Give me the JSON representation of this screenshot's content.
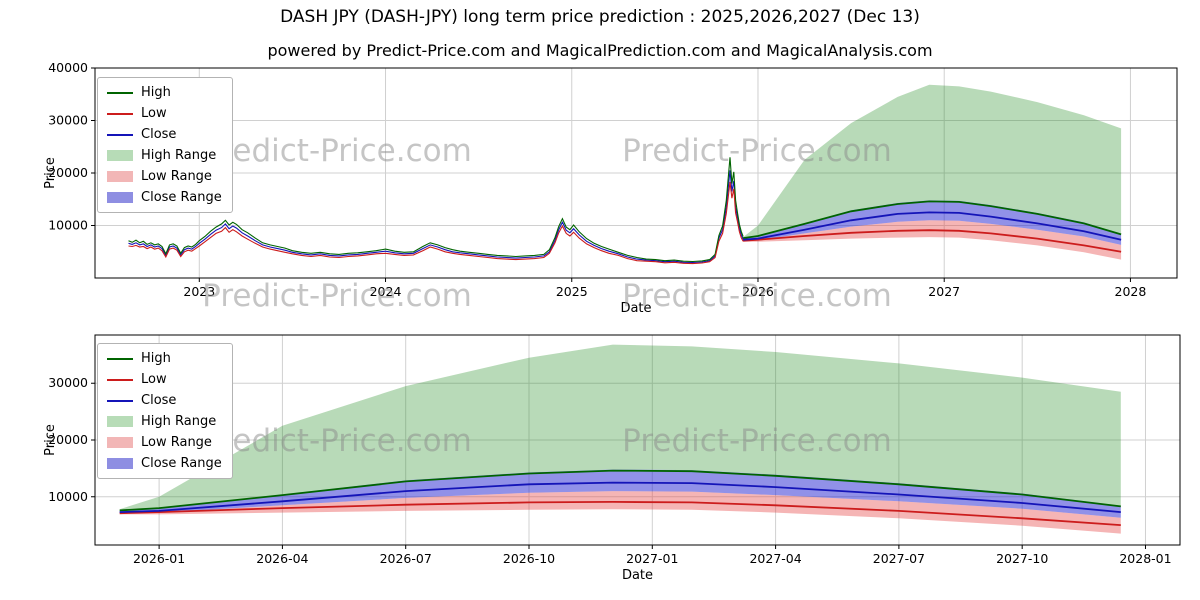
{
  "title": "DASH JPY (DASH-JPY) long term price prediction : 2025,2026,2027 (Dec 13)",
  "subtitle": "powered by Predict-Price.com and MagicalPrediction.com and MagicalAnalysis.com",
  "watermark": "Predict-Price.com",
  "colors": {
    "high": "#006400",
    "low": "#cc1c1c",
    "close": "#1414b8",
    "high_range_fill": "rgba(34,139,34,0.32)",
    "low_range_fill": "rgba(230,60,60,0.38)",
    "close_range_fill": "rgba(45,45,210,0.52)",
    "grid": "#d0d0d0",
    "spine": "#000000",
    "watermark_color": "#8c8c8c"
  },
  "legend": {
    "items": [
      {
        "label": "High",
        "type": "line",
        "color": "#006400"
      },
      {
        "label": "Low",
        "type": "line",
        "color": "#cc1c1c"
      },
      {
        "label": "Close",
        "type": "line",
        "color": "#1414b8"
      },
      {
        "label": "High Range",
        "type": "patch",
        "color": "#b7dcb7"
      },
      {
        "label": "Low Range",
        "type": "patch",
        "color": "#f2b6b6"
      },
      {
        "label": "Close Range",
        "type": "patch",
        "color": "#8e8ee2"
      }
    ]
  },
  "chart_data": [
    {
      "type": "line",
      "name": "history-and-forecast-chart",
      "xlabel": "Date",
      "ylabel": "Price",
      "xlim": [
        2022.44,
        2028.25
      ],
      "ylim": [
        0,
        40000
      ],
      "x_tick_values": [
        2023,
        2024,
        2025,
        2026,
        2027,
        2028
      ],
      "x_tick_labels": [
        "2023",
        "2024",
        "2025",
        "2026",
        "2027",
        "2028"
      ],
      "y_tick_values": [
        10000,
        20000,
        30000,
        40000
      ],
      "y_tick_labels": [
        "10000",
        "20000",
        "30000",
        "40000"
      ],
      "legend": [
        "High",
        "Low",
        "Close",
        "High Range",
        "Low Range",
        "Close Range"
      ],
      "historical_ohlc": [
        [
          2022.62,
          7100,
          6100,
          6600
        ],
        [
          2022.64,
          6800,
          6000,
          6400
        ],
        [
          2022.66,
          7200,
          6200,
          6700
        ],
        [
          2022.68,
          6700,
          5900,
          6300
        ],
        [
          2022.7,
          7000,
          6000,
          6500
        ],
        [
          2022.72,
          6400,
          5600,
          6000
        ],
        [
          2022.74,
          6700,
          5900,
          6300
        ],
        [
          2022.76,
          6300,
          5500,
          5900
        ],
        [
          2022.78,
          6500,
          5700,
          6100
        ],
        [
          2022.8,
          6000,
          5200,
          5600
        ],
        [
          2022.82,
          4600,
          4000,
          4300
        ],
        [
          2022.84,
          6300,
          5500,
          5900
        ],
        [
          2022.86,
          6500,
          5700,
          6100
        ],
        [
          2022.88,
          6100,
          5300,
          5700
        ],
        [
          2022.9,
          4700,
          4100,
          4400
        ],
        [
          2022.92,
          5800,
          5000,
          5400
        ],
        [
          2022.94,
          6100,
          5300,
          5700
        ],
        [
          2022.96,
          5900,
          5100,
          5500
        ],
        [
          2022.98,
          6400,
          5600,
          6000
        ],
        [
          2023.0,
          7100,
          6100,
          6600
        ],
        [
          2023.03,
          7900,
          6900,
          7400
        ],
        [
          2023.06,
          8900,
          7700,
          8300
        ],
        [
          2023.09,
          9700,
          8500,
          9100
        ],
        [
          2023.12,
          10300,
          8900,
          9600
        ],
        [
          2023.14,
          11000,
          9600,
          10300
        ],
        [
          2023.16,
          10100,
          8700,
          9400
        ],
        [
          2023.18,
          10600,
          9200,
          9900
        ],
        [
          2023.2,
          10200,
          8800,
          9500
        ],
        [
          2023.23,
          9200,
          8000,
          8600
        ],
        [
          2023.26,
          8600,
          7400,
          8000
        ],
        [
          2023.3,
          7600,
          6600,
          7100
        ],
        [
          2023.34,
          6700,
          5900,
          6300
        ],
        [
          2023.38,
          6300,
          5500,
          5900
        ],
        [
          2023.42,
          6000,
          5200,
          5600
        ],
        [
          2023.46,
          5700,
          4900,
          5300
        ],
        [
          2023.5,
          5200,
          4600,
          4900
        ],
        [
          2023.55,
          4900,
          4300,
          4600
        ],
        [
          2023.6,
          4700,
          4100,
          4400
        ],
        [
          2023.65,
          4900,
          4300,
          4600
        ],
        [
          2023.7,
          4600,
          4000,
          4300
        ],
        [
          2023.75,
          4500,
          3900,
          4200
        ],
        [
          2023.8,
          4700,
          4100,
          4400
        ],
        [
          2023.85,
          4800,
          4200,
          4500
        ],
        [
          2023.9,
          5000,
          4400,
          4700
        ],
        [
          2023.95,
          5200,
          4600,
          4900
        ],
        [
          2024.0,
          5500,
          4700,
          5100
        ],
        [
          2024.05,
          5100,
          4500,
          4800
        ],
        [
          2024.1,
          4900,
          4300,
          4600
        ],
        [
          2024.15,
          5000,
          4400,
          4700
        ],
        [
          2024.2,
          6000,
          5200,
          5600
        ],
        [
          2024.24,
          6700,
          5900,
          6300
        ],
        [
          2024.28,
          6300,
          5500,
          5900
        ],
        [
          2024.32,
          5800,
          5000,
          5400
        ],
        [
          2024.36,
          5400,
          4700,
          5000
        ],
        [
          2024.4,
          5100,
          4500,
          4800
        ],
        [
          2024.45,
          4900,
          4300,
          4600
        ],
        [
          2024.5,
          4700,
          4100,
          4400
        ],
        [
          2024.55,
          4500,
          3900,
          4200
        ],
        [
          2024.6,
          4300,
          3700,
          4000
        ],
        [
          2024.65,
          4200,
          3600,
          3900
        ],
        [
          2024.7,
          4100,
          3500,
          3800
        ],
        [
          2024.75,
          4200,
          3600,
          3900
        ],
        [
          2024.8,
          4300,
          3700,
          4000
        ],
        [
          2024.85,
          4500,
          3900,
          4200
        ],
        [
          2024.88,
          5400,
          4700,
          5000
        ],
        [
          2024.91,
          7700,
          6700,
          7200
        ],
        [
          2024.93,
          9800,
          8600,
          9200
        ],
        [
          2024.95,
          11300,
          9900,
          10600
        ],
        [
          2024.97,
          9700,
          8500,
          9100
        ],
        [
          2024.99,
          9200,
          8000,
          8600
        ],
        [
          2025.01,
          10100,
          8700,
          9400
        ],
        [
          2025.04,
          8800,
          7600,
          8200
        ],
        [
          2025.08,
          7500,
          6500,
          7000
        ],
        [
          2025.12,
          6600,
          5800,
          6200
        ],
        [
          2025.16,
          6000,
          5200,
          5600
        ],
        [
          2025.2,
          5500,
          4700,
          5100
        ],
        [
          2025.25,
          4900,
          4300,
          4600
        ],
        [
          2025.3,
          4300,
          3700,
          4000
        ],
        [
          2025.35,
          3900,
          3300,
          3600
        ],
        [
          2025.4,
          3600,
          3200,
          3400
        ],
        [
          2025.45,
          3500,
          3100,
          3300
        ],
        [
          2025.5,
          3300,
          2900,
          3100
        ],
        [
          2025.55,
          3400,
          3000,
          3200
        ],
        [
          2025.6,
          3200,
          2800,
          3000
        ],
        [
          2025.65,
          3150,
          2750,
          2950
        ],
        [
          2025.7,
          3250,
          2850,
          3050
        ],
        [
          2025.74,
          3500,
          3100,
          3300
        ],
        [
          2025.77,
          4500,
          3900,
          4200
        ],
        [
          2025.79,
          8100,
          7000,
          7600
        ],
        [
          2025.81,
          9900,
          8500,
          9200
        ],
        [
          2025.83,
          14800,
          12300,
          13500
        ],
        [
          2025.85,
          23000,
          18300,
          20500
        ],
        [
          2025.86,
          18000,
          15200,
          16500
        ],
        [
          2025.87,
          20200,
          17000,
          18500
        ],
        [
          2025.88,
          14800,
          12400,
          13500
        ],
        [
          2025.89,
          12400,
          10700,
          11500
        ],
        [
          2025.9,
          10200,
          8800,
          9500
        ],
        [
          2025.91,
          8900,
          7700,
          8300
        ],
        [
          2025.92,
          7900,
          7000,
          7400
        ]
      ],
      "prediction": {
        "t": [
          2025.92,
          2026.0,
          2026.25,
          2026.5,
          2026.75,
          2026.92,
          2027.08,
          2027.25,
          2027.5,
          2027.75,
          2027.95
        ],
        "high_line": [
          7600,
          8000,
          10300,
          12700,
          14100,
          14600,
          14500,
          13700,
          12200,
          10400,
          8300
        ],
        "low_line": [
          7100,
          7300,
          8000,
          8600,
          9000,
          9100,
          9000,
          8500,
          7500,
          6200,
          5000
        ],
        "close_line": [
          7300,
          7500,
          9200,
          11000,
          12200,
          12500,
          12400,
          11700,
          10400,
          8900,
          7300
        ],
        "high_range_top": [
          7800,
          10000,
          22500,
          29500,
          34500,
          36800,
          36500,
          35500,
          33500,
          31000,
          28500
        ],
        "close_range_top": [
          7500,
          8000,
          10400,
          12900,
          14300,
          14800,
          14700,
          13900,
          12400,
          10600,
          8400
        ],
        "close_range_bottom": [
          7100,
          7200,
          8500,
          9800,
          10700,
          11000,
          10900,
          10300,
          9200,
          7900,
          6300
        ],
        "low_range_bottom": [
          6900,
          6900,
          7200,
          7500,
          7700,
          7800,
          7700,
          7200,
          6200,
          4900,
          3500
        ]
      }
    },
    {
      "type": "line",
      "name": "forecast-detail-chart",
      "xlabel": "Date",
      "ylabel": "Price",
      "xlim": [
        2025.87,
        2028.07
      ],
      "ylim": [
        1500,
        38500
      ],
      "x_tick_values": [
        2026.0,
        2026.25,
        2026.5,
        2026.75,
        2027.0,
        2027.25,
        2027.5,
        2027.75,
        2028.0
      ],
      "x_tick_labels": [
        "2026-01",
        "2026-04",
        "2026-07",
        "2026-10",
        "2027-01",
        "2027-04",
        "2027-07",
        "2027-10",
        "2028-01"
      ],
      "y_tick_values": [
        10000,
        20000,
        30000
      ],
      "y_tick_labels": [
        "10000",
        "20000",
        "30000"
      ],
      "legend": [
        "High",
        "Low",
        "Close",
        "High Range",
        "Low Range",
        "Close Range"
      ],
      "prediction": {
        "t": [
          2025.92,
          2026.0,
          2026.25,
          2026.5,
          2026.75,
          2026.92,
          2027.08,
          2027.25,
          2027.5,
          2027.75,
          2027.95
        ],
        "high_line": [
          7600,
          8000,
          10300,
          12700,
          14100,
          14600,
          14500,
          13700,
          12200,
          10400,
          8300
        ],
        "low_line": [
          7100,
          7300,
          8000,
          8600,
          9000,
          9100,
          9000,
          8500,
          7500,
          6200,
          5000
        ],
        "close_line": [
          7300,
          7500,
          9200,
          11000,
          12200,
          12500,
          12400,
          11700,
          10400,
          8900,
          7300
        ],
        "high_range_top": [
          7800,
          10000,
          22500,
          29500,
          34500,
          36800,
          36500,
          35500,
          33500,
          31000,
          28500
        ],
        "close_range_top": [
          7500,
          8000,
          10400,
          12900,
          14300,
          14800,
          14700,
          13900,
          12400,
          10600,
          8400
        ],
        "close_range_bottom": [
          7100,
          7200,
          8500,
          9800,
          10700,
          11000,
          10900,
          10300,
          9200,
          7900,
          6300
        ],
        "low_range_bottom": [
          6900,
          6900,
          7200,
          7500,
          7700,
          7800,
          7700,
          7200,
          6200,
          4900,
          3500
        ]
      }
    }
  ]
}
